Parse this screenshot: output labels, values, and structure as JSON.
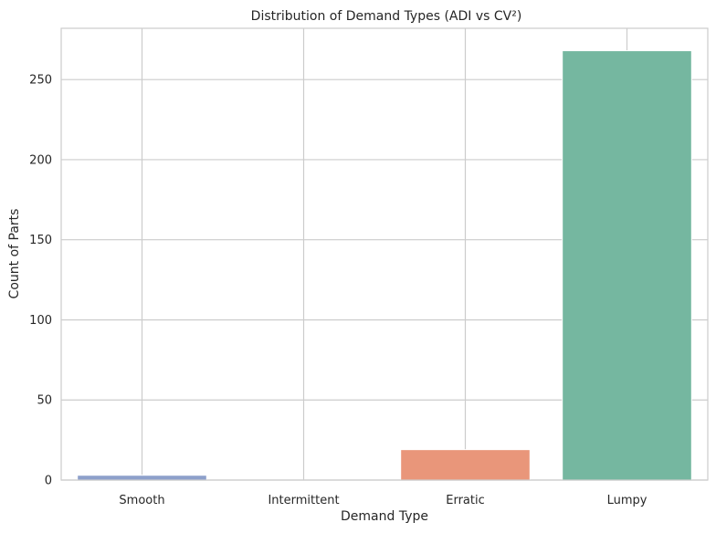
{
  "chart_data": {
    "type": "bar",
    "title": "Distribution of Demand Types (ADI vs CV²)",
    "xlabel": "Demand Type",
    "ylabel": "Count of Parts",
    "categories": [
      "Smooth",
      "Intermittent",
      "Erratic",
      "Lumpy"
    ],
    "values": [
      3,
      0,
      19,
      268
    ],
    "colors": [
      "#8da0cb",
      "#fc8d62",
      "#e9967a",
      "#75b7a0"
    ],
    "ylim": [
      0,
      282
    ],
    "yticks": [
      0,
      50,
      100,
      150,
      200,
      250
    ],
    "grid": true,
    "legend": "none"
  }
}
